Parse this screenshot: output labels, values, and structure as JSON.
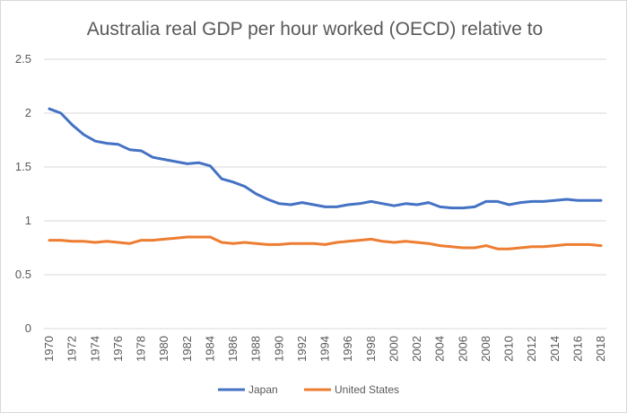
{
  "chart_data": {
    "type": "line",
    "title": "Australia real GDP per hour worked (OECD) relative to",
    "xlabel": "",
    "ylabel": "",
    "ylim": [
      0,
      2.5
    ],
    "y_ticks": [
      0,
      0.5,
      1,
      1.5,
      2,
      2.5
    ],
    "y_tick_labels": [
      "0",
      "0.5",
      "1",
      "1.5",
      "2",
      "2.5"
    ],
    "x": [
      1970,
      1971,
      1972,
      1973,
      1974,
      1975,
      1976,
      1977,
      1978,
      1979,
      1980,
      1981,
      1982,
      1983,
      1984,
      1985,
      1986,
      1987,
      1988,
      1989,
      1990,
      1991,
      1992,
      1993,
      1994,
      1995,
      1996,
      1997,
      1998,
      1999,
      2000,
      2001,
      2002,
      2003,
      2004,
      2005,
      2006,
      2007,
      2008,
      2009,
      2010,
      2011,
      2012,
      2013,
      2014,
      2015,
      2016,
      2017,
      2018
    ],
    "x_tick_labels": [
      "1970",
      "1972",
      "1974",
      "1976",
      "1978",
      "1980",
      "1982",
      "1984",
      "1986",
      "1988",
      "1990",
      "1992",
      "1994",
      "1996",
      "1998",
      "2000",
      "2002",
      "2004",
      "2006",
      "2008",
      "2010",
      "2012",
      "2014",
      "2016",
      "2018"
    ],
    "grid": true,
    "legend_position": "bottom",
    "series": [
      {
        "name": "Japan",
        "color": "#4472c4",
        "values": [
          2.04,
          2.0,
          1.89,
          1.8,
          1.74,
          1.72,
          1.71,
          1.66,
          1.65,
          1.59,
          1.57,
          1.55,
          1.53,
          1.54,
          1.51,
          1.39,
          1.36,
          1.32,
          1.25,
          1.2,
          1.16,
          1.15,
          1.17,
          1.15,
          1.13,
          1.13,
          1.15,
          1.16,
          1.18,
          1.16,
          1.14,
          1.16,
          1.15,
          1.17,
          1.13,
          1.12,
          1.12,
          1.13,
          1.18,
          1.18,
          1.15,
          1.17,
          1.18,
          1.18,
          1.19,
          1.2,
          1.19,
          1.19,
          1.19
        ]
      },
      {
        "name": "United States",
        "color": "#ed7d31",
        "values": [
          0.82,
          0.82,
          0.81,
          0.81,
          0.8,
          0.81,
          0.8,
          0.79,
          0.82,
          0.82,
          0.83,
          0.84,
          0.85,
          0.85,
          0.85,
          0.8,
          0.79,
          0.8,
          0.79,
          0.78,
          0.78,
          0.79,
          0.79,
          0.79,
          0.78,
          0.8,
          0.81,
          0.82,
          0.83,
          0.81,
          0.8,
          0.81,
          0.8,
          0.79,
          0.77,
          0.76,
          0.75,
          0.75,
          0.77,
          0.74,
          0.74,
          0.75,
          0.76,
          0.76,
          0.77,
          0.78,
          0.78,
          0.78,
          0.77
        ]
      }
    ]
  }
}
